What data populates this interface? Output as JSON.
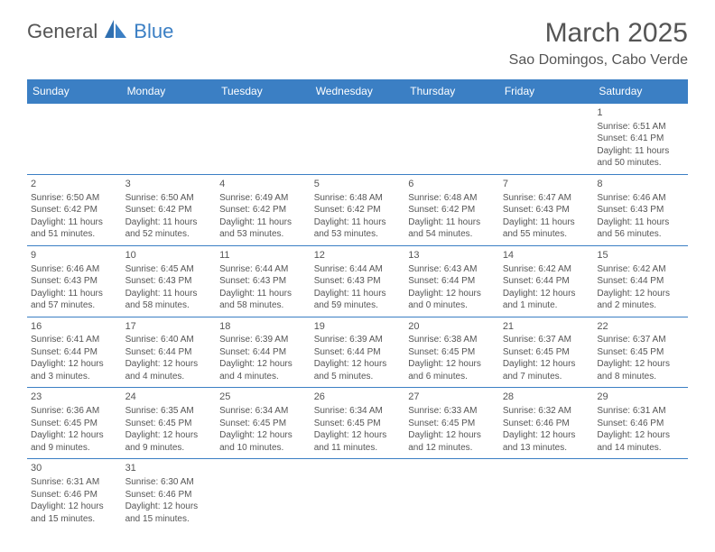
{
  "logo": {
    "part1": "General",
    "part2": "Blue"
  },
  "title": "March 2025",
  "location": "Sao Domingos, Cabo Verde",
  "colors": {
    "accent": "#3b7fc4",
    "text": "#555555",
    "bg": "#ffffff"
  },
  "dayHeaders": [
    "Sunday",
    "Monday",
    "Tuesday",
    "Wednesday",
    "Thursday",
    "Friday",
    "Saturday"
  ],
  "weeks": [
    [
      null,
      null,
      null,
      null,
      null,
      null,
      {
        "n": "1",
        "sr": "Sunrise: 6:51 AM",
        "ss": "Sunset: 6:41 PM",
        "dl1": "Daylight: 11 hours",
        "dl2": "and 50 minutes."
      }
    ],
    [
      {
        "n": "2",
        "sr": "Sunrise: 6:50 AM",
        "ss": "Sunset: 6:42 PM",
        "dl1": "Daylight: 11 hours",
        "dl2": "and 51 minutes."
      },
      {
        "n": "3",
        "sr": "Sunrise: 6:50 AM",
        "ss": "Sunset: 6:42 PM",
        "dl1": "Daylight: 11 hours",
        "dl2": "and 52 minutes."
      },
      {
        "n": "4",
        "sr": "Sunrise: 6:49 AM",
        "ss": "Sunset: 6:42 PM",
        "dl1": "Daylight: 11 hours",
        "dl2": "and 53 minutes."
      },
      {
        "n": "5",
        "sr": "Sunrise: 6:48 AM",
        "ss": "Sunset: 6:42 PM",
        "dl1": "Daylight: 11 hours",
        "dl2": "and 53 minutes."
      },
      {
        "n": "6",
        "sr": "Sunrise: 6:48 AM",
        "ss": "Sunset: 6:42 PM",
        "dl1": "Daylight: 11 hours",
        "dl2": "and 54 minutes."
      },
      {
        "n": "7",
        "sr": "Sunrise: 6:47 AM",
        "ss": "Sunset: 6:43 PM",
        "dl1": "Daylight: 11 hours",
        "dl2": "and 55 minutes."
      },
      {
        "n": "8",
        "sr": "Sunrise: 6:46 AM",
        "ss": "Sunset: 6:43 PM",
        "dl1": "Daylight: 11 hours",
        "dl2": "and 56 minutes."
      }
    ],
    [
      {
        "n": "9",
        "sr": "Sunrise: 6:46 AM",
        "ss": "Sunset: 6:43 PM",
        "dl1": "Daylight: 11 hours",
        "dl2": "and 57 minutes."
      },
      {
        "n": "10",
        "sr": "Sunrise: 6:45 AM",
        "ss": "Sunset: 6:43 PM",
        "dl1": "Daylight: 11 hours",
        "dl2": "and 58 minutes."
      },
      {
        "n": "11",
        "sr": "Sunrise: 6:44 AM",
        "ss": "Sunset: 6:43 PM",
        "dl1": "Daylight: 11 hours",
        "dl2": "and 58 minutes."
      },
      {
        "n": "12",
        "sr": "Sunrise: 6:44 AM",
        "ss": "Sunset: 6:43 PM",
        "dl1": "Daylight: 11 hours",
        "dl2": "and 59 minutes."
      },
      {
        "n": "13",
        "sr": "Sunrise: 6:43 AM",
        "ss": "Sunset: 6:44 PM",
        "dl1": "Daylight: 12 hours",
        "dl2": "and 0 minutes."
      },
      {
        "n": "14",
        "sr": "Sunrise: 6:42 AM",
        "ss": "Sunset: 6:44 PM",
        "dl1": "Daylight: 12 hours",
        "dl2": "and 1 minute."
      },
      {
        "n": "15",
        "sr": "Sunrise: 6:42 AM",
        "ss": "Sunset: 6:44 PM",
        "dl1": "Daylight: 12 hours",
        "dl2": "and 2 minutes."
      }
    ],
    [
      {
        "n": "16",
        "sr": "Sunrise: 6:41 AM",
        "ss": "Sunset: 6:44 PM",
        "dl1": "Daylight: 12 hours",
        "dl2": "and 3 minutes."
      },
      {
        "n": "17",
        "sr": "Sunrise: 6:40 AM",
        "ss": "Sunset: 6:44 PM",
        "dl1": "Daylight: 12 hours",
        "dl2": "and 4 minutes."
      },
      {
        "n": "18",
        "sr": "Sunrise: 6:39 AM",
        "ss": "Sunset: 6:44 PM",
        "dl1": "Daylight: 12 hours",
        "dl2": "and 4 minutes."
      },
      {
        "n": "19",
        "sr": "Sunrise: 6:39 AM",
        "ss": "Sunset: 6:44 PM",
        "dl1": "Daylight: 12 hours",
        "dl2": "and 5 minutes."
      },
      {
        "n": "20",
        "sr": "Sunrise: 6:38 AM",
        "ss": "Sunset: 6:45 PM",
        "dl1": "Daylight: 12 hours",
        "dl2": "and 6 minutes."
      },
      {
        "n": "21",
        "sr": "Sunrise: 6:37 AM",
        "ss": "Sunset: 6:45 PM",
        "dl1": "Daylight: 12 hours",
        "dl2": "and 7 minutes."
      },
      {
        "n": "22",
        "sr": "Sunrise: 6:37 AM",
        "ss": "Sunset: 6:45 PM",
        "dl1": "Daylight: 12 hours",
        "dl2": "and 8 minutes."
      }
    ],
    [
      {
        "n": "23",
        "sr": "Sunrise: 6:36 AM",
        "ss": "Sunset: 6:45 PM",
        "dl1": "Daylight: 12 hours",
        "dl2": "and 9 minutes."
      },
      {
        "n": "24",
        "sr": "Sunrise: 6:35 AM",
        "ss": "Sunset: 6:45 PM",
        "dl1": "Daylight: 12 hours",
        "dl2": "and 9 minutes."
      },
      {
        "n": "25",
        "sr": "Sunrise: 6:34 AM",
        "ss": "Sunset: 6:45 PM",
        "dl1": "Daylight: 12 hours",
        "dl2": "and 10 minutes."
      },
      {
        "n": "26",
        "sr": "Sunrise: 6:34 AM",
        "ss": "Sunset: 6:45 PM",
        "dl1": "Daylight: 12 hours",
        "dl2": "and 11 minutes."
      },
      {
        "n": "27",
        "sr": "Sunrise: 6:33 AM",
        "ss": "Sunset: 6:45 PM",
        "dl1": "Daylight: 12 hours",
        "dl2": "and 12 minutes."
      },
      {
        "n": "28",
        "sr": "Sunrise: 6:32 AM",
        "ss": "Sunset: 6:46 PM",
        "dl1": "Daylight: 12 hours",
        "dl2": "and 13 minutes."
      },
      {
        "n": "29",
        "sr": "Sunrise: 6:31 AM",
        "ss": "Sunset: 6:46 PM",
        "dl1": "Daylight: 12 hours",
        "dl2": "and 14 minutes."
      }
    ],
    [
      {
        "n": "30",
        "sr": "Sunrise: 6:31 AM",
        "ss": "Sunset: 6:46 PM",
        "dl1": "Daylight: 12 hours",
        "dl2": "and 15 minutes."
      },
      {
        "n": "31",
        "sr": "Sunrise: 6:30 AM",
        "ss": "Sunset: 6:46 PM",
        "dl1": "Daylight: 12 hours",
        "dl2": "and 15 minutes."
      },
      null,
      null,
      null,
      null,
      null
    ]
  ]
}
